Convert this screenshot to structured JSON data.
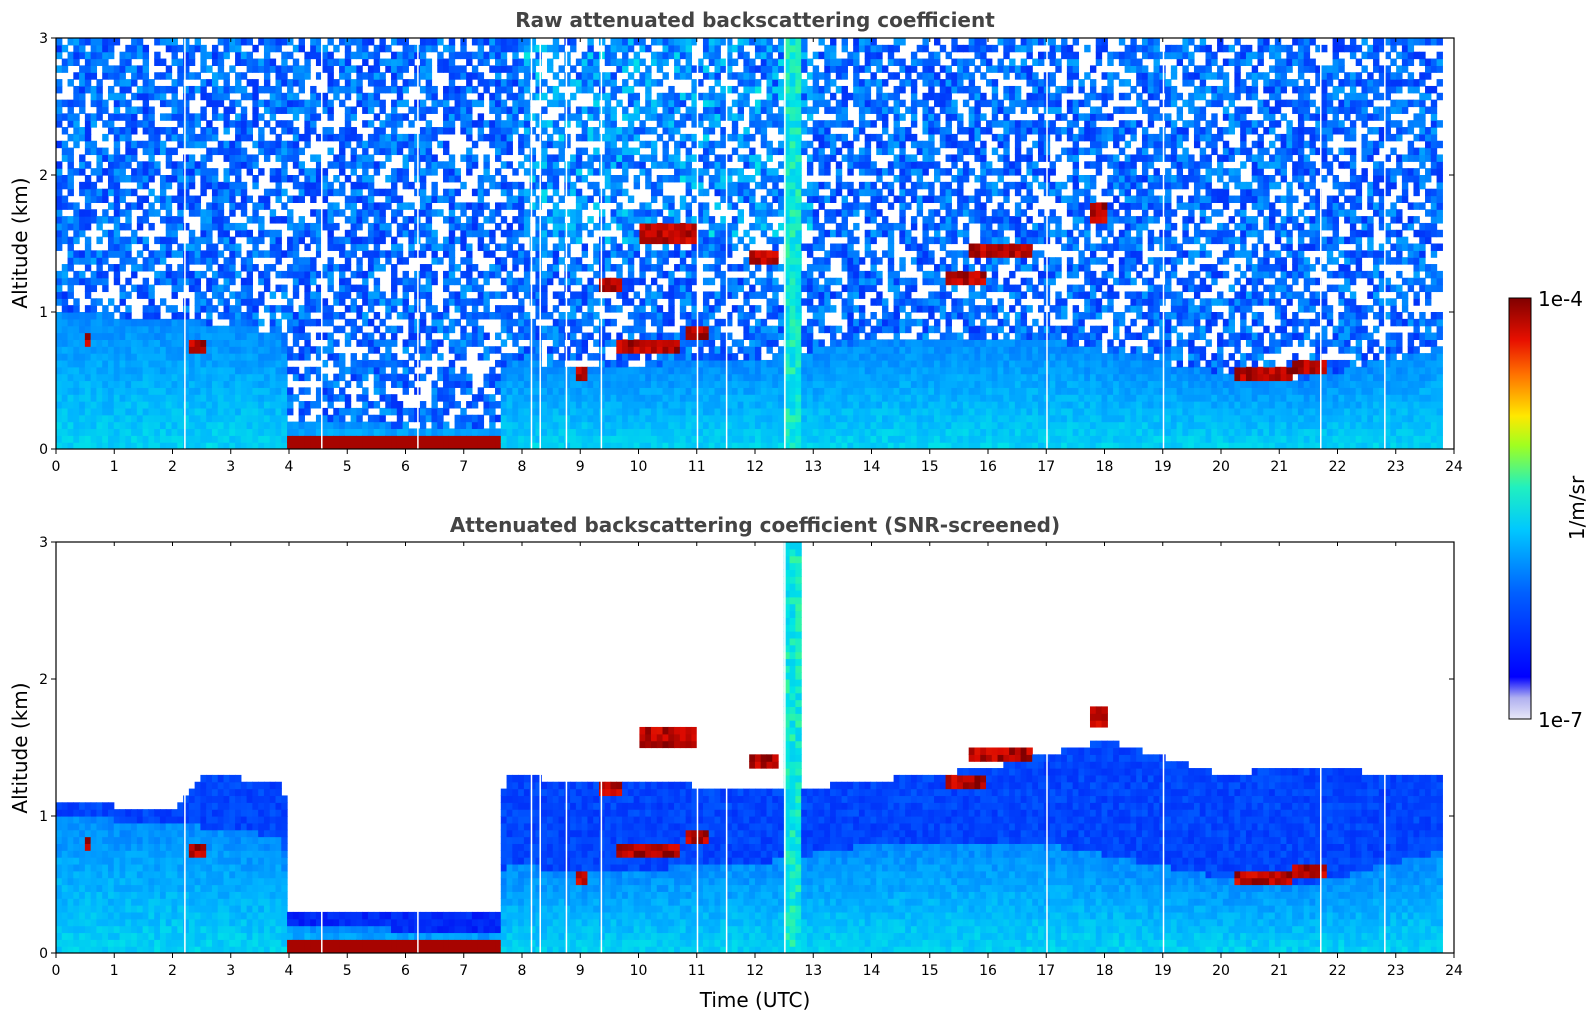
{
  "chart_data": [
    {
      "type": "heatmap",
      "title": "Raw attenuated backscattering coefficient",
      "xlabel": "",
      "ylabel": "Altitude (km)",
      "xlim": [
        0,
        24
      ],
      "ylim": [
        0,
        3
      ],
      "xticks": [
        "0",
        "1",
        "2",
        "3",
        "4",
        "5",
        "6",
        "7",
        "8",
        "9",
        "10",
        "11",
        "12",
        "13",
        "14",
        "15",
        "16",
        "17",
        "18",
        "19",
        "20",
        "21",
        "22",
        "23",
        "24"
      ],
      "yticks": [
        "0",
        "1",
        "2",
        "3"
      ],
      "layers": {
        "boundary_layer_top_km": [
          {
            "x": 0,
            "y": 1.0
          },
          {
            "x": 2,
            "y": 0.95
          },
          {
            "x": 3.9,
            "y": 0.85
          },
          {
            "x": 4.0,
            "y": 0.2
          },
          {
            "x": 7.6,
            "y": 0.15
          },
          {
            "x": 7.7,
            "y": 0.65
          },
          {
            "x": 9,
            "y": 0.6
          },
          {
            "x": 12,
            "y": 0.65
          },
          {
            "x": 14,
            "y": 0.8
          },
          {
            "x": 17,
            "y": 0.8
          },
          {
            "x": 20,
            "y": 0.55
          },
          {
            "x": 21.5,
            "y": 0.5
          },
          {
            "x": 23.8,
            "y": 0.75
          }
        ],
        "surface_fog_4_to_7_6_h_km": 0.05,
        "clouds": [
          {
            "t0": 0.5,
            "t1": 0.6,
            "z": 0.8
          },
          {
            "t0": 2.3,
            "t1": 2.6,
            "z": 0.75
          },
          {
            "t0": 8.9,
            "t1": 9.1,
            "z": 0.55
          },
          {
            "t0": 9.3,
            "t1": 9.7,
            "z": 1.2
          },
          {
            "t0": 9.6,
            "t1": 10.7,
            "z": 0.75
          },
          {
            "t0": 10.0,
            "t1": 11.0,
            "z": 1.58
          },
          {
            "t0": 10.8,
            "t1": 11.2,
            "z": 0.85
          },
          {
            "t0": 11.9,
            "t1": 12.4,
            "z": 1.4
          },
          {
            "t0": 15.3,
            "t1": 16.0,
            "z": 1.25
          },
          {
            "t0": 15.7,
            "t1": 16.8,
            "z": 1.45
          },
          {
            "t0": 17.8,
            "t1": 18.0,
            "z": 1.73
          },
          {
            "t0": 20.2,
            "t1": 21.2,
            "z": 0.55
          },
          {
            "t0": 21.2,
            "t1": 21.8,
            "z": 0.6
          }
        ],
        "precipitation_column_h": [
          12.5,
          12.75
        ]
      }
    },
    {
      "type": "heatmap",
      "title": "Attenuated backscattering coefficient (SNR-screened)",
      "xlabel": "Time (UTC)",
      "ylabel": "Altitude (km)",
      "xlim": [
        0,
        24
      ],
      "ylim": [
        0,
        3
      ],
      "xticks": [
        "0",
        "1",
        "2",
        "3",
        "4",
        "5",
        "6",
        "7",
        "8",
        "9",
        "10",
        "11",
        "12",
        "13",
        "14",
        "15",
        "16",
        "17",
        "18",
        "19",
        "20",
        "21",
        "22",
        "23",
        "24"
      ],
      "yticks": [
        "0",
        "1",
        "2",
        "3"
      ],
      "screened_top_km": [
        {
          "x": 0,
          "y": 1.1
        },
        {
          "x": 2,
          "y": 1.05
        },
        {
          "x": 2.5,
          "y": 1.3
        },
        {
          "x": 3.9,
          "y": 1.25
        },
        {
          "x": 4.1,
          "y": 0.3
        },
        {
          "x": 7.5,
          "y": 0.2
        },
        {
          "x": 7.7,
          "y": 1.3
        },
        {
          "x": 9,
          "y": 1.25
        },
        {
          "x": 12.8,
          "y": 1.2
        },
        {
          "x": 16,
          "y": 1.35
        },
        {
          "x": 18,
          "y": 1.55
        },
        {
          "x": 20,
          "y": 1.3
        },
        {
          "x": 21,
          "y": 1.35
        },
        {
          "x": 23.8,
          "y": 1.3
        }
      ]
    }
  ],
  "colorbar": {
    "label": "1/m/sr",
    "max_label": "1e-4",
    "min_label": "1e-7",
    "scale": "log",
    "range": [
      1e-07,
      0.0001
    ],
    "colormap": [
      "#e6e6f8",
      "#b8b8f0",
      "#0000ff",
      "#0050ff",
      "#00a0ff",
      "#00e0ff",
      "#40ff80",
      "#c0ff00",
      "#ffe000",
      "#ff8000",
      "#ff2000",
      "#c00000",
      "#800000"
    ]
  }
}
